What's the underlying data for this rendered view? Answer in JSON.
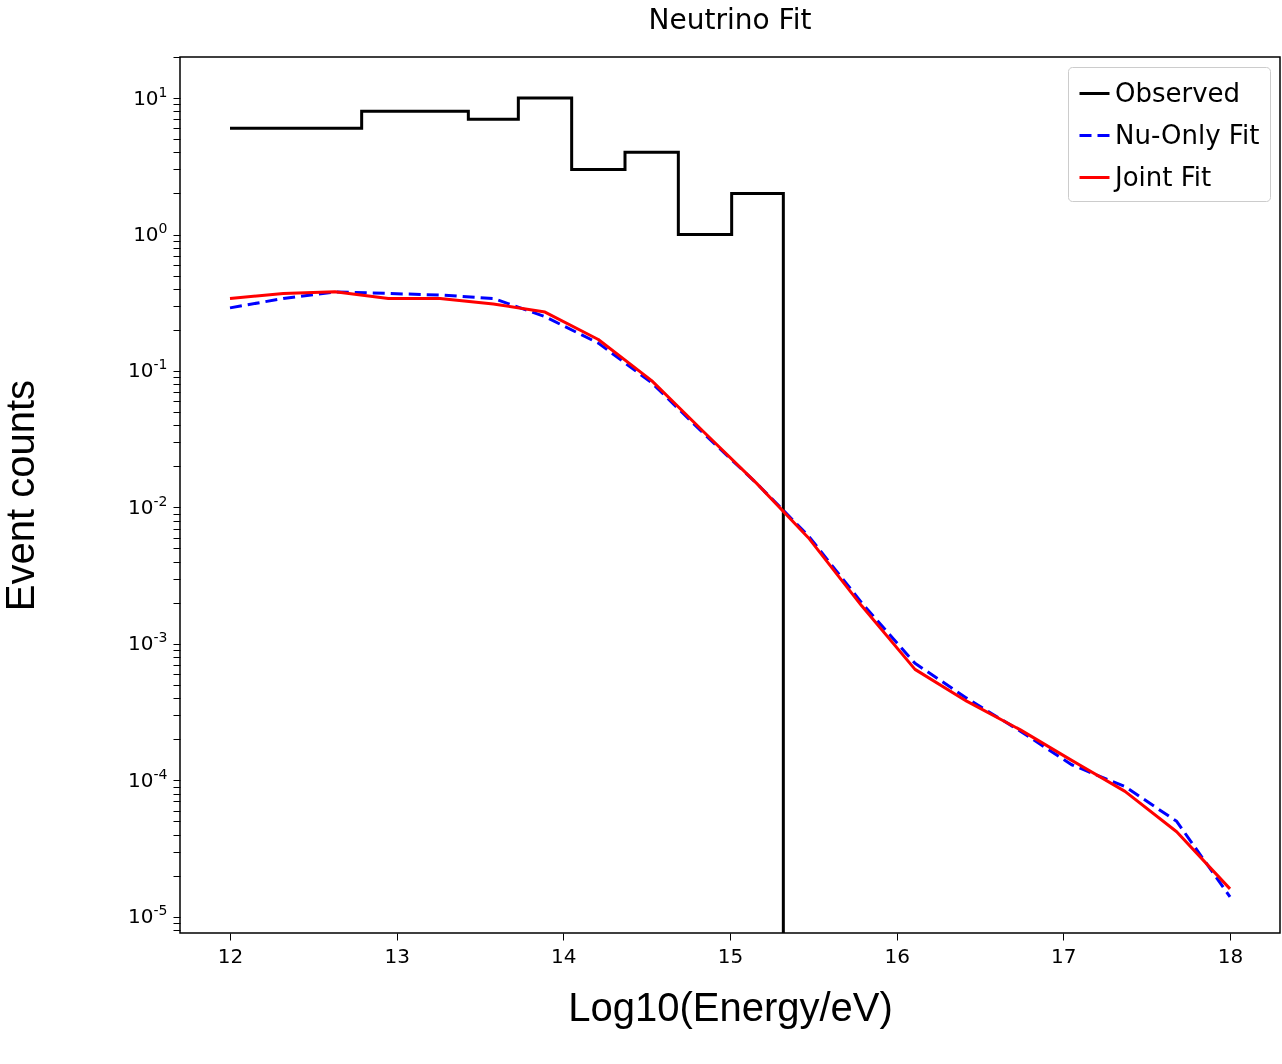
{
  "chart_data": {
    "type": "line",
    "title": "Neutrino Fit",
    "xlabel": "Log10(Energy/eV)",
    "ylabel": "Event counts",
    "log": "y",
    "grid": false,
    "legend": "top right",
    "xlim": [
      11.7,
      18.3
    ],
    "xticks": [
      12,
      13,
      14,
      15,
      16,
      17,
      18
    ],
    "ylim": [
      7.6e-06,
      20
    ],
    "yticks": [
      {
        "value": 1e-05,
        "label": "10$^{-5}$"
      },
      {
        "value": 0.0001,
        "label": "10$^{-4}$"
      },
      {
        "value": 0.001,
        "label": "10$^{-3}$"
      },
      {
        "value": 0.01,
        "label": "10$^{-2}$"
      },
      {
        "value": 0.1,
        "label": "10$^{-1}$"
      },
      {
        "value": 1,
        "label": "10$^{0}$"
      },
      {
        "value": 10,
        "label": "10$^{1}$"
      },
      {
        "value": 8e-06,
        "label": null
      },
      {
        "value": 9e-06,
        "label": null
      },
      {
        "value": 2e-05,
        "label": null
      },
      {
        "value": 3e-05,
        "label": null
      },
      {
        "value": 4e-05,
        "label": null
      },
      {
        "value": 5e-05,
        "label": null
      },
      {
        "value": 6e-05,
        "label": null
      },
      {
        "value": 7e-05,
        "label": null
      },
      {
        "value": 8e-05,
        "label": null
      },
      {
        "value": 9e-05,
        "label": null
      },
      {
        "value": 0.0002,
        "label": null
      },
      {
        "value": 0.0003,
        "label": null
      },
      {
        "value": 0.0004,
        "label": null
      },
      {
        "value": 0.0005,
        "label": null
      },
      {
        "value": 0.0006,
        "label": null
      },
      {
        "value": 0.0007,
        "label": null
      },
      {
        "value": 0.0008,
        "label": null
      },
      {
        "value": 0.0009,
        "label": null
      },
      {
        "value": 0.002,
        "label": null
      },
      {
        "value": 0.003,
        "label": null
      },
      {
        "value": 0.004,
        "label": null
      },
      {
        "value": 0.005,
        "label": null
      },
      {
        "value": 0.006,
        "label": null
      },
      {
        "value": 0.007,
        "label": null
      },
      {
        "value": 0.008,
        "label": null
      },
      {
        "value": 0.009,
        "label": null
      },
      {
        "value": 0.02,
        "label": null
      },
      {
        "value": 0.03,
        "label": null
      },
      {
        "value": 0.04,
        "label": null
      },
      {
        "value": 0.05,
        "label": null
      },
      {
        "value": 0.06,
        "label": null
      },
      {
        "value": 0.07,
        "label": null
      },
      {
        "value": 0.08,
        "label": null
      },
      {
        "value": 0.09,
        "label": null
      },
      {
        "value": 0.2,
        "label": null
      },
      {
        "value": 0.3,
        "label": null
      },
      {
        "value": 0.4,
        "label": null
      },
      {
        "value": 0.5,
        "label": null
      },
      {
        "value": 0.6,
        "label": null
      },
      {
        "value": 0.7,
        "label": null
      },
      {
        "value": 0.8,
        "label": null
      },
      {
        "value": 0.9,
        "label": null
      },
      {
        "value": 2,
        "label": null
      },
      {
        "value": 3,
        "label": null
      },
      {
        "value": 4,
        "label": null
      },
      {
        "value": 5,
        "label": null
      },
      {
        "value": 6,
        "label": null
      },
      {
        "value": 7,
        "label": null
      },
      {
        "value": 8,
        "label": null
      },
      {
        "value": 9,
        "label": null
      },
      {
        "value": 20,
        "label": null
      }
    ],
    "x": [
      12,
      12.32,
      12.63,
      12.95,
      13.26,
      13.58,
      13.89,
      14.21,
      14.53,
      14.84,
      15.16,
      15.47,
      15.79,
      16.11,
      16.42,
      16.74,
      17.05,
      17.37,
      17.68,
      18
    ],
    "series": [
      {
        "name": "Observed",
        "type": "histogram",
        "color": "#000000",
        "bins": [
          12,
          12.79,
          13.43,
          13.73,
          14.05,
          14.37,
          14.69,
          15.01,
          15.32
        ],
        "values": [
          6,
          8,
          7,
          10,
          3,
          4,
          1,
          2
        ]
      },
      {
        "name": "Nu-Only Fit",
        "color": "#0000ff",
        "line_style": "dashed",
        "values": [
          0.29,
          0.34,
          0.38,
          0.37,
          0.36,
          0.34,
          0.25,
          0.16,
          0.082,
          0.035,
          0.015,
          0.0062,
          0.002,
          0.00072,
          0.0004,
          0.00023,
          0.00013,
          9e-05,
          5e-05,
          1.4e-05
        ]
      },
      {
        "name": "Joint Fit",
        "color": "#ff0000",
        "line_style": "solid",
        "values": [
          0.34,
          0.37,
          0.38,
          0.34,
          0.34,
          0.31,
          0.27,
          0.17,
          0.085,
          0.036,
          0.015,
          0.006,
          0.0019,
          0.00065,
          0.00038,
          0.000235,
          0.00014,
          8.3e-05,
          4.2e-05,
          1.6e-05
        ]
      }
    ]
  }
}
